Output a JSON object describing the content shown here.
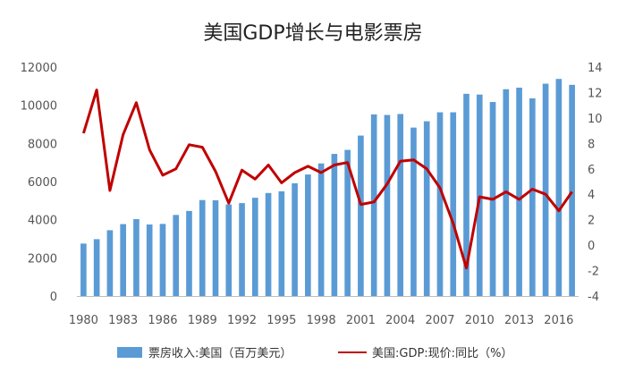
{
  "chart_data": {
    "type": "bar+line",
    "title": "美国GDP增长与电影票房",
    "x": [
      1980,
      1981,
      1982,
      1983,
      1984,
      1985,
      1986,
      1987,
      1988,
      1989,
      1990,
      1991,
      1992,
      1993,
      1994,
      1995,
      1996,
      1997,
      1998,
      1999,
      2000,
      2001,
      2002,
      2003,
      2004,
      2005,
      2006,
      2007,
      2008,
      2009,
      2010,
      2011,
      2012,
      2013,
      2014,
      2015,
      2016,
      2017
    ],
    "x_tick_labels": [
      "1980",
      "1983",
      "1986",
      "1989",
      "1992",
      "1995",
      "1998",
      "2001",
      "2004",
      "2007",
      "2010",
      "2013",
      "2016"
    ],
    "series": [
      {
        "name": "票房收入:美国（百万美元）",
        "type": "bar",
        "axis": "left",
        "color": "#5b9bd5",
        "values": [
          2750,
          2980,
          3450,
          3770,
          4030,
          3750,
          3780,
          4250,
          4460,
          5030,
          5020,
          4800,
          4870,
          5150,
          5400,
          5490,
          5910,
          6370,
          6950,
          7450,
          7660,
          8410,
          9520,
          9490,
          9540,
          8830,
          9160,
          9630,
          9630,
          10600,
          10560,
          10170,
          10840,
          10920,
          10360,
          11130,
          11380,
          11070
        ]
      },
      {
        "name": "美国:GDP:现价:同比（%）",
        "type": "line",
        "axis": "right",
        "color": "#c00000",
        "values": [
          8.8,
          12.2,
          4.3,
          8.7,
          11.2,
          7.5,
          5.5,
          6.0,
          7.9,
          7.7,
          5.8,
          3.3,
          5.9,
          5.2,
          6.3,
          4.9,
          5.7,
          6.2,
          5.7,
          6.3,
          6.5,
          3.2,
          3.4,
          4.8,
          6.6,
          6.7,
          6.0,
          4.5,
          1.7,
          -1.8,
          3.8,
          3.6,
          4.2,
          3.6,
          4.4,
          4.0,
          2.7,
          4.2
        ]
      }
    ],
    "y_left": {
      "min": 0,
      "max": 12000,
      "ticks": [
        "0",
        "2000",
        "4000",
        "6000",
        "8000",
        "10000",
        "12000"
      ]
    },
    "y_right": {
      "min": -4,
      "max": 14,
      "ticks": [
        "-4",
        "-2",
        "0",
        "2",
        "4",
        "6",
        "8",
        "10",
        "12",
        "14"
      ]
    },
    "grid": false,
    "legend": {
      "position": "bottom",
      "bar_label": "票房收入:美国（百万美元）",
      "line_label": "美国:GDP:现价:同比（%）"
    }
  }
}
